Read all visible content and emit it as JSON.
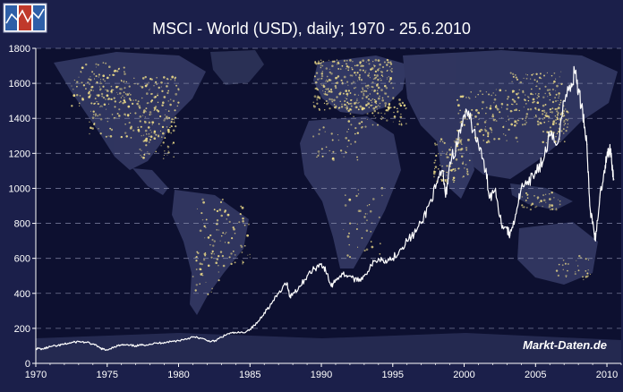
{
  "chart_data": {
    "type": "line",
    "title": "MSCI - World (USD), daily; 1970 - 25.6.2010",
    "xlabel": "",
    "ylabel": "",
    "xlim": [
      1970,
      2011
    ],
    "ylim": [
      0,
      1800
    ],
    "x_ticks": [
      1970,
      1975,
      1980,
      1985,
      1990,
      1995,
      2000,
      2005,
      2010
    ],
    "y_ticks": [
      0,
      200,
      400,
      600,
      800,
      1000,
      1200,
      1400,
      1600,
      1800
    ],
    "grid": true,
    "legend": "none",
    "series": [
      {
        "color": "#ffffff",
        "points": [
          [
            1970.0,
            85
          ],
          [
            1970.5,
            82
          ],
          [
            1971.0,
            95
          ],
          [
            1971.5,
            100
          ],
          [
            1972.0,
            110
          ],
          [
            1972.5,
            118
          ],
          [
            1973.0,
            125
          ],
          [
            1973.5,
            120
          ],
          [
            1974.0,
            110
          ],
          [
            1974.5,
            88
          ],
          [
            1974.9,
            75
          ],
          [
            1975.5,
            95
          ],
          [
            1976.0,
            105
          ],
          [
            1976.5,
            103
          ],
          [
            1977.0,
            100
          ],
          [
            1977.5,
            105
          ],
          [
            1978.0,
            110
          ],
          [
            1978.5,
            115
          ],
          [
            1979.0,
            120
          ],
          [
            1979.5,
            125
          ],
          [
            1980.0,
            130
          ],
          [
            1980.5,
            140
          ],
          [
            1981.0,
            150
          ],
          [
            1981.5,
            145
          ],
          [
            1982.0,
            130
          ],
          [
            1982.5,
            125
          ],
          [
            1983.0,
            150
          ],
          [
            1983.5,
            170
          ],
          [
            1984.0,
            175
          ],
          [
            1984.5,
            175
          ],
          [
            1985.0,
            195
          ],
          [
            1985.5,
            230
          ],
          [
            1986.0,
            290
          ],
          [
            1986.5,
            340
          ],
          [
            1987.0,
            400
          ],
          [
            1987.6,
            460
          ],
          [
            1987.8,
            380
          ],
          [
            1988.0,
            400
          ],
          [
            1988.5,
            440
          ],
          [
            1989.0,
            500
          ],
          [
            1989.5,
            540
          ],
          [
            1990.0,
            570
          ],
          [
            1990.3,
            530
          ],
          [
            1990.7,
            440
          ],
          [
            1991.0,
            480
          ],
          [
            1991.5,
            510
          ],
          [
            1992.0,
            500
          ],
          [
            1992.5,
            470
          ],
          [
            1993.0,
            500
          ],
          [
            1993.5,
            560
          ],
          [
            1994.0,
            600
          ],
          [
            1994.5,
            590
          ],
          [
            1995.0,
            600
          ],
          [
            1995.5,
            650
          ],
          [
            1996.0,
            700
          ],
          [
            1996.5,
            740
          ],
          [
            1997.0,
            800
          ],
          [
            1997.5,
            900
          ],
          [
            1998.0,
            1000
          ],
          [
            1998.5,
            1100
          ],
          [
            1998.7,
            950
          ],
          [
            1999.0,
            1150
          ],
          [
            1999.5,
            1250
          ],
          [
            2000.0,
            1420
          ],
          [
            2000.5,
            1380
          ],
          [
            2001.0,
            1250
          ],
          [
            2001.5,
            1100
          ],
          [
            2001.8,
            950
          ],
          [
            2002.2,
            1000
          ],
          [
            2002.6,
            800
          ],
          [
            2003.0,
            770
          ],
          [
            2003.2,
            730
          ],
          [
            2003.6,
            850
          ],
          [
            2004.0,
            1000
          ],
          [
            2004.5,
            1020
          ],
          [
            2005.0,
            1100
          ],
          [
            2005.5,
            1150
          ],
          [
            2006.0,
            1300
          ],
          [
            2006.5,
            1250
          ],
          [
            2007.0,
            1500
          ],
          [
            2007.5,
            1600
          ],
          [
            2007.8,
            1670
          ],
          [
            2008.0,
            1550
          ],
          [
            2008.3,
            1450
          ],
          [
            2008.6,
            1250
          ],
          [
            2008.8,
            900
          ],
          [
            2009.1,
            750
          ],
          [
            2009.2,
            700
          ],
          [
            2009.5,
            950
          ],
          [
            2009.8,
            1100
          ],
          [
            2010.0,
            1180
          ],
          [
            2010.2,
            1230
          ],
          [
            2010.3,
            1200
          ],
          [
            2010.4,
            1100
          ],
          [
            2010.48,
            1050
          ]
        ]
      }
    ]
  },
  "watermark": "Markt-Daten.de",
  "logo_icon": "rising-chart-logo-icon",
  "colors": {
    "background": "#1b1f4a",
    "ocean_dark": "#0d1030",
    "land": "#323862",
    "lights": "#f2e08a",
    "grid": "#8a8fae",
    "axis": "#ffffff",
    "text": "#ffffff",
    "line": "#ffffff"
  }
}
